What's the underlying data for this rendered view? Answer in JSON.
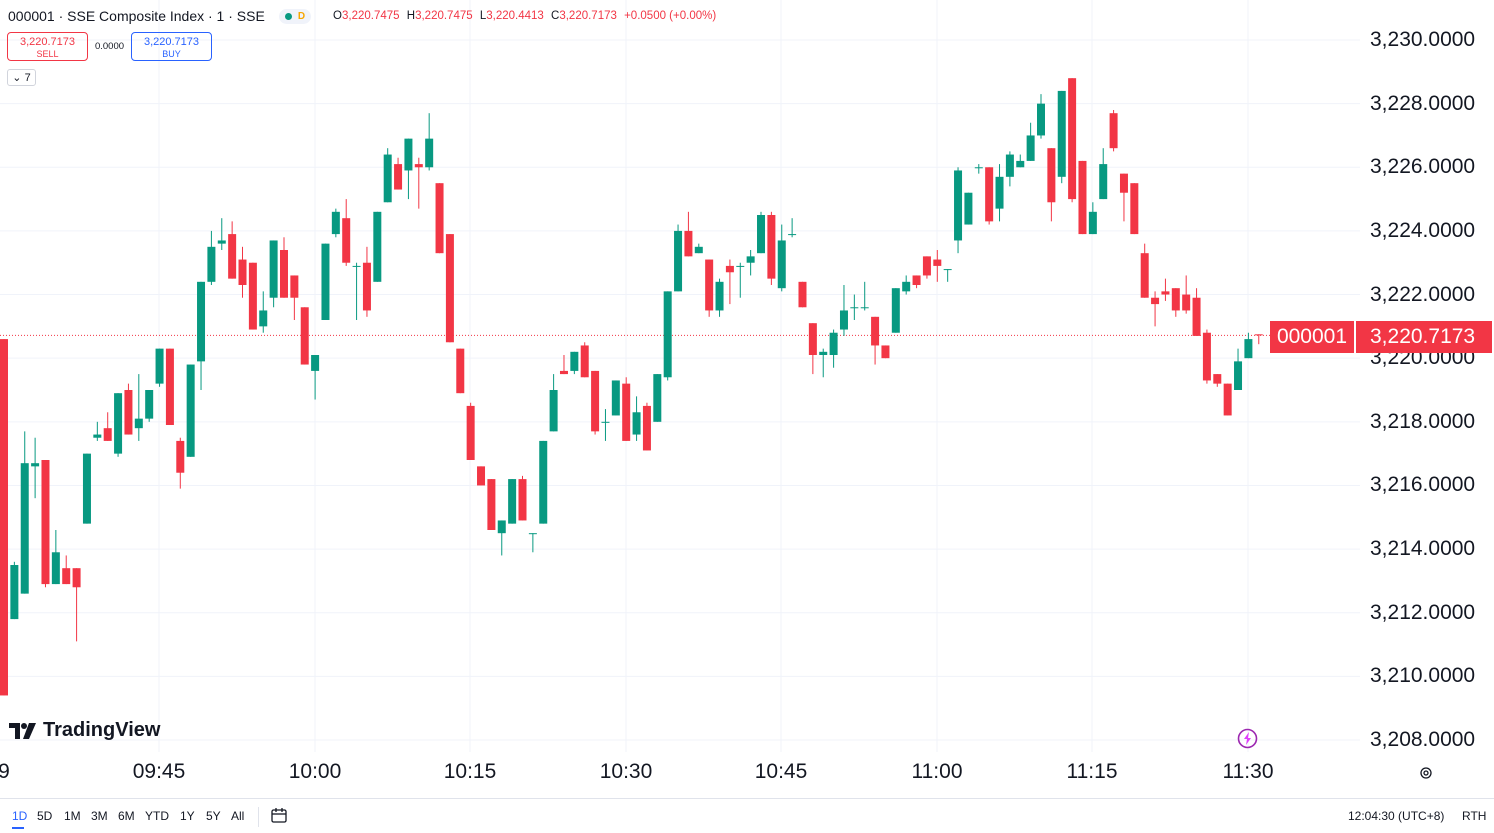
{
  "header": {
    "symbol_title": "000001 · SSE Composite Index · 1 · SSE",
    "market_badge": "D",
    "ohlc": [
      {
        "key": "O",
        "value": "3,220.7475"
      },
      {
        "key": "H",
        "value": "3,220.7475"
      },
      {
        "key": "L",
        "value": "3,220.4413"
      },
      {
        "key": "C",
        "value": "3,220.7173"
      }
    ],
    "change": "+0.0500 (+0.00%)"
  },
  "trade": {
    "sell_price": "3,220.7173",
    "sell_label": "SELL",
    "spread": "0.0000",
    "buy_price": "3,220.7173",
    "buy_label": "BUY"
  },
  "indicators_toggle": "7",
  "price_tag": {
    "symbol": "000001",
    "value": "3,220.7173"
  },
  "logo_text": "TradingView",
  "toolbar": {
    "ranges": [
      "1D",
      "5D",
      "1M",
      "3M",
      "6M",
      "YTD",
      "1Y",
      "5Y",
      "All"
    ],
    "active_range": "1D",
    "clock": "12:04:30 (UTC+8)",
    "session": "RTH"
  },
  "colors": {
    "up": "#089981",
    "down": "#f23645",
    "grid": "#f0f3fa"
  },
  "icons": [
    "calendar-range-icon",
    "settings-icon",
    "bolt-icon",
    "tradingview-logo-icon",
    "chevron-down-icon"
  ],
  "chart_data": {
    "type": "candlestick",
    "ylim": [
      3207.5,
      3230.6
    ],
    "y_ticks": [
      "3,208.0000",
      "3,210.0000",
      "3,212.0000",
      "3,214.0000",
      "3,216.0000",
      "3,218.0000",
      "3,220.0000",
      "3,222.0000",
      "3,224.0000",
      "3,226.0000",
      "3,228.0000",
      "3,230.0000"
    ],
    "x_ticks": [
      "9",
      "09:45",
      "10:00",
      "10:15",
      "10:30",
      "10:45",
      "11:00",
      "11:15",
      "11:30"
    ],
    "time_start": "09:30",
    "interval_minutes": 1,
    "last_price": 3220.7173,
    "candles": [
      {
        "t": "09:30",
        "o": 3220.6,
        "h": 3220.6,
        "l": 3209.4,
        "c": 3209.4
      },
      {
        "t": "09:31",
        "o": 3211.8,
        "h": 3213.6,
        "l": 3211.8,
        "c": 3213.5
      },
      {
        "t": "09:32",
        "o": 3212.6,
        "h": 3217.7,
        "l": 3212.6,
        "c": 3216.7
      },
      {
        "t": "09:33",
        "o": 3216.6,
        "h": 3217.5,
        "l": 3215.6,
        "c": 3216.7
      },
      {
        "t": "09:34",
        "o": 3216.8,
        "h": 3216.8,
        "l": 3212.8,
        "c": 3212.9
      },
      {
        "t": "09:35",
        "o": 3212.9,
        "h": 3214.6,
        "l": 3212.9,
        "c": 3213.9
      },
      {
        "t": "09:36",
        "o": 3213.4,
        "h": 3213.8,
        "l": 3212.9,
        "c": 3212.9
      },
      {
        "t": "09:37",
        "o": 3213.4,
        "h": 3213.4,
        "l": 3211.1,
        "c": 3212.8
      },
      {
        "t": "09:38",
        "o": 3214.8,
        "h": 3217.0,
        "l": 3214.8,
        "c": 3217.0
      },
      {
        "t": "09:39",
        "o": 3217.5,
        "h": 3218.0,
        "l": 3217.4,
        "c": 3217.6
      },
      {
        "t": "09:40",
        "o": 3217.8,
        "h": 3218.3,
        "l": 3217.4,
        "c": 3217.4
      },
      {
        "t": "09:41",
        "o": 3217.0,
        "h": 3218.9,
        "l": 3216.9,
        "c": 3218.9
      },
      {
        "t": "09:42",
        "o": 3219.0,
        "h": 3219.2,
        "l": 3217.6,
        "c": 3217.6
      },
      {
        "t": "09:43",
        "o": 3217.8,
        "h": 3219.5,
        "l": 3217.4,
        "c": 3218.1
      },
      {
        "t": "09:44",
        "o": 3218.1,
        "h": 3219.0,
        "l": 3218.0,
        "c": 3219.0
      },
      {
        "t": "09:45",
        "o": 3219.2,
        "h": 3220.3,
        "l": 3219.1,
        "c": 3220.3
      },
      {
        "t": "09:46",
        "o": 3220.3,
        "h": 3220.3,
        "l": 3217.9,
        "c": 3217.9
      },
      {
        "t": "09:47",
        "o": 3217.4,
        "h": 3217.5,
        "l": 3215.9,
        "c": 3216.4
      },
      {
        "t": "09:48",
        "o": 3216.9,
        "h": 3219.8,
        "l": 3216.9,
        "c": 3219.8
      },
      {
        "t": "09:49",
        "o": 3219.9,
        "h": 3222.4,
        "l": 3219.0,
        "c": 3222.4
      },
      {
        "t": "09:50",
        "o": 3222.4,
        "h": 3224.0,
        "l": 3222.3,
        "c": 3223.5
      },
      {
        "t": "09:51",
        "o": 3223.6,
        "h": 3224.4,
        "l": 3223.4,
        "c": 3223.7
      },
      {
        "t": "09:52",
        "o": 3223.9,
        "h": 3224.3,
        "l": 3222.5,
        "c": 3222.5
      },
      {
        "t": "09:53",
        "o": 3223.1,
        "h": 3223.5,
        "l": 3221.9,
        "c": 3222.3
      },
      {
        "t": "09:54",
        "o": 3223.0,
        "h": 3223.0,
        "l": 3220.9,
        "c": 3220.9
      },
      {
        "t": "09:55",
        "o": 3221.0,
        "h": 3222.1,
        "l": 3220.8,
        "c": 3221.5
      },
      {
        "t": "09:56",
        "o": 3221.9,
        "h": 3223.7,
        "l": 3221.6,
        "c": 3223.7
      },
      {
        "t": "09:57",
        "o": 3223.4,
        "h": 3223.8,
        "l": 3221.9,
        "c": 3221.9
      },
      {
        "t": "09:58",
        "o": 3222.6,
        "h": 3222.6,
        "l": 3221.2,
        "c": 3221.9
      },
      {
        "t": "09:59",
        "o": 3221.6,
        "h": 3221.6,
        "l": 3219.8,
        "c": 3219.8
      },
      {
        "t": "10:00",
        "o": 3219.6,
        "h": 3220.1,
        "l": 3218.7,
        "c": 3220.1
      },
      {
        "t": "10:01",
        "o": 3221.2,
        "h": 3223.6,
        "l": 3221.2,
        "c": 3223.6
      },
      {
        "t": "10:02",
        "o": 3223.9,
        "h": 3224.7,
        "l": 3223.8,
        "c": 3224.6
      },
      {
        "t": "10:03",
        "o": 3224.4,
        "h": 3225.0,
        "l": 3222.9,
        "c": 3223.0
      },
      {
        "t": "10:04",
        "o": 3222.9,
        "h": 3223.0,
        "l": 3221.2,
        "c": 3222.9
      },
      {
        "t": "10:05",
        "o": 3223.0,
        "h": 3223.5,
        "l": 3221.3,
        "c": 3221.5
      },
      {
        "t": "10:06",
        "o": 3222.4,
        "h": 3224.6,
        "l": 3222.4,
        "c": 3224.6
      },
      {
        "t": "10:07",
        "o": 3224.9,
        "h": 3226.6,
        "l": 3224.9,
        "c": 3226.4
      },
      {
        "t": "10:08",
        "o": 3226.1,
        "h": 3226.3,
        "l": 3225.3,
        "c": 3225.3
      },
      {
        "t": "10:09",
        "o": 3225.9,
        "h": 3226.9,
        "l": 3225.0,
        "c": 3226.9
      },
      {
        "t": "10:10",
        "o": 3226.1,
        "h": 3226.3,
        "l": 3224.7,
        "c": 3226.0
      },
      {
        "t": "10:11",
        "o": 3226.0,
        "h": 3227.7,
        "l": 3225.9,
        "c": 3226.9
      },
      {
        "t": "10:12",
        "o": 3225.5,
        "h": 3225.5,
        "l": 3223.3,
        "c": 3223.3
      },
      {
        "t": "10:13",
        "o": 3223.9,
        "h": 3223.9,
        "l": 3220.5,
        "c": 3220.5
      },
      {
        "t": "10:14",
        "o": 3220.3,
        "h": 3220.3,
        "l": 3218.9,
        "c": 3218.9
      },
      {
        "t": "10:15",
        "o": 3218.5,
        "h": 3218.6,
        "l": 3216.8,
        "c": 3216.8
      },
      {
        "t": "10:16",
        "o": 3216.6,
        "h": 3216.6,
        "l": 3216.0,
        "c": 3216.0
      },
      {
        "t": "10:17",
        "o": 3216.2,
        "h": 3216.2,
        "l": 3214.6,
        "c": 3214.6
      },
      {
        "t": "10:18",
        "o": 3214.5,
        "h": 3214.9,
        "l": 3213.8,
        "c": 3214.9
      },
      {
        "t": "10:19",
        "o": 3214.8,
        "h": 3216.2,
        "l": 3214.8,
        "c": 3216.2
      },
      {
        "t": "10:20",
        "o": 3216.2,
        "h": 3216.3,
        "l": 3214.9,
        "c": 3214.9
      },
      {
        "t": "10:21",
        "o": 3214.5,
        "h": 3214.5,
        "l": 3213.9,
        "c": 3214.5
      },
      {
        "t": "10:22",
        "o": 3214.8,
        "h": 3217.4,
        "l": 3214.8,
        "c": 3217.4
      },
      {
        "t": "10:23",
        "o": 3217.7,
        "h": 3219.5,
        "l": 3217.7,
        "c": 3219.0
      },
      {
        "t": "10:24",
        "o": 3219.6,
        "h": 3220.1,
        "l": 3219.5,
        "c": 3219.5
      },
      {
        "t": "10:25",
        "o": 3219.6,
        "h": 3220.2,
        "l": 3219.5,
        "c": 3220.2
      },
      {
        "t": "10:26",
        "o": 3220.4,
        "h": 3220.5,
        "l": 3219.4,
        "c": 3219.4
      },
      {
        "t": "10:27",
        "o": 3219.6,
        "h": 3219.6,
        "l": 3217.6,
        "c": 3217.7
      },
      {
        "t": "10:28",
        "o": 3218.0,
        "h": 3218.4,
        "l": 3217.4,
        "c": 3218.0
      },
      {
        "t": "10:29",
        "o": 3218.2,
        "h": 3219.3,
        "l": 3218.2,
        "c": 3219.3
      },
      {
        "t": "10:30",
        "o": 3219.2,
        "h": 3219.4,
        "l": 3217.4,
        "c": 3217.4
      },
      {
        "t": "10:31",
        "o": 3217.6,
        "h": 3218.8,
        "l": 3217.4,
        "c": 3218.3
      },
      {
        "t": "10:32",
        "o": 3218.5,
        "h": 3218.6,
        "l": 3217.1,
        "c": 3217.1
      },
      {
        "t": "10:33",
        "o": 3218.0,
        "h": 3219.5,
        "l": 3218.0,
        "c": 3219.5
      },
      {
        "t": "10:34",
        "o": 3219.4,
        "h": 3222.1,
        "l": 3219.3,
        "c": 3222.1
      },
      {
        "t": "10:35",
        "o": 3222.1,
        "h": 3224.2,
        "l": 3222.1,
        "c": 3224.0
      },
      {
        "t": "10:36",
        "o": 3224.0,
        "h": 3224.6,
        "l": 3223.2,
        "c": 3223.2
      },
      {
        "t": "10:37",
        "o": 3223.3,
        "h": 3223.6,
        "l": 3223.3,
        "c": 3223.5
      },
      {
        "t": "10:38",
        "o": 3223.1,
        "h": 3223.1,
        "l": 3221.3,
        "c": 3221.5
      },
      {
        "t": "10:39",
        "o": 3221.5,
        "h": 3222.5,
        "l": 3221.3,
        "c": 3222.4
      },
      {
        "t": "10:40",
        "o": 3222.9,
        "h": 3223.1,
        "l": 3221.7,
        "c": 3222.7
      },
      {
        "t": "10:41",
        "o": 3222.9,
        "h": 3223.0,
        "l": 3221.9,
        "c": 3222.9
      },
      {
        "t": "10:42",
        "o": 3223.0,
        "h": 3223.4,
        "l": 3222.6,
        "c": 3223.2
      },
      {
        "t": "10:43",
        "o": 3223.3,
        "h": 3224.6,
        "l": 3223.3,
        "c": 3224.5
      },
      {
        "t": "10:44",
        "o": 3224.5,
        "h": 3224.6,
        "l": 3222.3,
        "c": 3222.5
      },
      {
        "t": "10:45",
        "o": 3222.2,
        "h": 3224.2,
        "l": 3222.1,
        "c": 3223.7
      },
      {
        "t": "10:46",
        "o": 3223.9,
        "h": 3224.4,
        "l": 3223.8,
        "c": 3223.9
      },
      {
        "t": "10:47",
        "o": 3222.4,
        "h": 3222.4,
        "l": 3221.6,
        "c": 3221.6
      },
      {
        "t": "10:48",
        "o": 3221.1,
        "h": 3221.1,
        "l": 3219.5,
        "c": 3220.1
      },
      {
        "t": "10:49",
        "o": 3220.1,
        "h": 3220.3,
        "l": 3219.4,
        "c": 3220.2
      },
      {
        "t": "10:50",
        "o": 3220.1,
        "h": 3220.9,
        "l": 3219.7,
        "c": 3220.8
      },
      {
        "t": "10:51",
        "o": 3220.9,
        "h": 3222.3,
        "l": 3220.7,
        "c": 3221.5
      },
      {
        "t": "10:52",
        "o": 3221.6,
        "h": 3222.0,
        "l": 3221.2,
        "c": 3221.6
      },
      {
        "t": "10:53",
        "o": 3221.6,
        "h": 3222.4,
        "l": 3221.5,
        "c": 3221.6
      },
      {
        "t": "10:54",
        "o": 3221.3,
        "h": 3221.3,
        "l": 3219.8,
        "c": 3220.4
      },
      {
        "t": "10:55",
        "o": 3220.4,
        "h": 3220.4,
        "l": 3220.0,
        "c": 3220.0
      },
      {
        "t": "10:56",
        "o": 3220.8,
        "h": 3222.2,
        "l": 3220.8,
        "c": 3222.2
      },
      {
        "t": "10:57",
        "o": 3222.1,
        "h": 3222.6,
        "l": 3222.0,
        "c": 3222.4
      },
      {
        "t": "10:58",
        "o": 3222.6,
        "h": 3222.6,
        "l": 3222.2,
        "c": 3222.3
      },
      {
        "t": "10:59",
        "o": 3223.2,
        "h": 3223.2,
        "l": 3222.5,
        "c": 3222.6
      },
      {
        "t": "11:00",
        "o": 3223.1,
        "h": 3223.4,
        "l": 3222.4,
        "c": 3222.9
      },
      {
        "t": "11:01",
        "o": 3222.8,
        "h": 3222.8,
        "l": 3222.4,
        "c": 3222.8
      },
      {
        "t": "11:02",
        "o": 3223.7,
        "h": 3226.0,
        "l": 3223.3,
        "c": 3225.9
      },
      {
        "t": "11:03",
        "o": 3224.2,
        "h": 3225.2,
        "l": 3224.2,
        "c": 3225.2
      },
      {
        "t": "11:04",
        "o": 3226.0,
        "h": 3226.1,
        "l": 3225.8,
        "c": 3226.0
      },
      {
        "t": "11:05",
        "o": 3226.0,
        "h": 3226.0,
        "l": 3224.2,
        "c": 3224.3
      },
      {
        "t": "11:06",
        "o": 3224.7,
        "h": 3226.1,
        "l": 3224.3,
        "c": 3225.7
      },
      {
        "t": "11:07",
        "o": 3225.7,
        "h": 3226.5,
        "l": 3225.4,
        "c": 3226.4
      },
      {
        "t": "11:08",
        "o": 3226.0,
        "h": 3226.4,
        "l": 3226.0,
        "c": 3226.2
      },
      {
        "t": "11:09",
        "o": 3226.2,
        "h": 3227.4,
        "l": 3226.2,
        "c": 3227.0
      },
      {
        "t": "11:10",
        "o": 3227.0,
        "h": 3228.3,
        "l": 3226.9,
        "c": 3228.0
      },
      {
        "t": "11:11",
        "o": 3226.6,
        "h": 3226.6,
        "l": 3224.3,
        "c": 3224.9
      },
      {
        "t": "11:12",
        "o": 3225.7,
        "h": 3228.4,
        "l": 3225.5,
        "c": 3228.4
      },
      {
        "t": "11:13",
        "o": 3228.8,
        "h": 3228.8,
        "l": 3224.9,
        "c": 3225.0
      },
      {
        "t": "11:14",
        "o": 3226.2,
        "h": 3226.2,
        "l": 3223.9,
        "c": 3223.9
      },
      {
        "t": "11:15",
        "o": 3223.9,
        "h": 3224.9,
        "l": 3223.9,
        "c": 3224.6
      },
      {
        "t": "11:16",
        "o": 3225.0,
        "h": 3226.6,
        "l": 3225.0,
        "c": 3226.1
      },
      {
        "t": "11:17",
        "o": 3227.7,
        "h": 3227.8,
        "l": 3226.5,
        "c": 3226.6
      },
      {
        "t": "11:18",
        "o": 3225.8,
        "h": 3225.8,
        "l": 3224.3,
        "c": 3225.2
      },
      {
        "t": "11:19",
        "o": 3225.5,
        "h": 3225.5,
        "l": 3223.9,
        "c": 3223.9
      },
      {
        "t": "11:20",
        "o": 3223.3,
        "h": 3223.6,
        "l": 3221.9,
        "c": 3221.9
      },
      {
        "t": "11:21",
        "o": 3221.9,
        "h": 3222.1,
        "l": 3221.0,
        "c": 3221.7
      },
      {
        "t": "11:22",
        "o": 3222.1,
        "h": 3222.5,
        "l": 3221.8,
        "c": 3222.0
      },
      {
        "t": "11:23",
        "o": 3222.2,
        "h": 3222.2,
        "l": 3221.3,
        "c": 3221.5
      },
      {
        "t": "11:24",
        "o": 3222.0,
        "h": 3222.6,
        "l": 3221.4,
        "c": 3221.5
      },
      {
        "t": "11:25",
        "o": 3221.9,
        "h": 3222.2,
        "l": 3220.7,
        "c": 3220.7
      },
      {
        "t": "11:26",
        "o": 3220.8,
        "h": 3220.9,
        "l": 3219.2,
        "c": 3219.3
      },
      {
        "t": "11:27",
        "o": 3219.5,
        "h": 3219.5,
        "l": 3219.1,
        "c": 3219.2
      },
      {
        "t": "11:28",
        "o": 3219.2,
        "h": 3219.2,
        "l": 3218.2,
        "c": 3218.2
      },
      {
        "t": "11:29",
        "o": 3219.0,
        "h": 3220.3,
        "l": 3219.0,
        "c": 3219.9
      },
      {
        "t": "11:30",
        "o": 3220.0,
        "h": 3220.8,
        "l": 3220.0,
        "c": 3220.6
      },
      {
        "t": "11:31",
        "o": 3220.75,
        "h": 3220.75,
        "l": 3220.44,
        "c": 3220.72
      }
    ]
  }
}
